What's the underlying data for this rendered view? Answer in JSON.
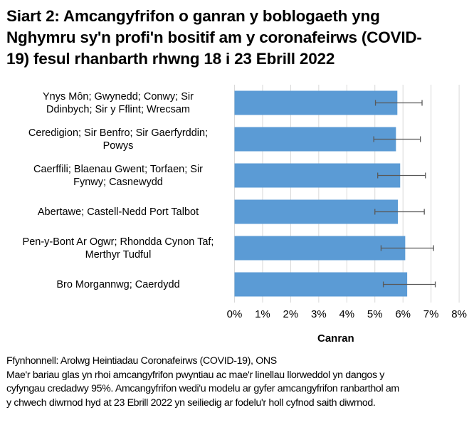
{
  "title": "Siart 2: Amcangyfrifon o ganran y boblogaeth yng Nghymru sy'n profi'n bositif am y coronafeirws (COVID-19) fesul rhanbarth rhwng 18 i 23 Ebrill 2022",
  "title_lines": [
    "Siart 2: Amcangyfrifon o ganran y boblogaeth yng",
    "Nghymru sy'n profi'n bositif am y coronafeirws (COVID-",
    "19) fesul rhanbarth rhwng 18 i 23 Ebrill 2022"
  ],
  "colors": {
    "bar": "#5b9bd5",
    "error_bar": "#595959",
    "grid": "#d9d9d9"
  },
  "chart_data": {
    "type": "bar",
    "orientation": "horizontal",
    "title": "Siart 2: Amcangyfrifon o ganran y boblogaeth yng Nghymru sy'n profi'n bositif am y coronafeirws (COVID-19) fesul rhanbarth rhwng 18 i 23 Ebrill 2022",
    "xlabel": "Canran",
    "ylabel": "",
    "xlim": [
      0,
      8
    ],
    "x_ticks": [
      "0%",
      "1%",
      "2%",
      "3%",
      "4%",
      "5%",
      "6%",
      "7%",
      "8%"
    ],
    "grid": "vertical",
    "legend": null,
    "categories": [
      "Ynys Môn; Gwynedd; Conwy; Sir Ddinbych; Sir y Fflint; Wrecsam",
      "Ceredigion; Sir Benfro; Sir Gaerfyrddin; Powys",
      "Caerffili; Blaenau Gwent; Torfaen; Sir Fynwy; Casnewydd",
      "Abertawe; Castell-Nedd Port Talbot",
      "Pen-y-Bont Ar Ogwr; Rhondda Cynon Taf; Merthyr Tudful",
      "Bro Morgannwg; Caerdydd"
    ],
    "category_lines": [
      [
        "Ynys Môn; Gwynedd; Conwy; Sir",
        "Ddinbych; Sir y Fflint; Wrecsam"
      ],
      [
        "Ceredigion; Sir Benfro; Sir Gaerfyrddin;",
        "Powys"
      ],
      [
        "Caerffili; Blaenau Gwent; Torfaen; Sir",
        "Fynwy; Casnewydd"
      ],
      [
        "Abertawe; Castell-Nedd Port Talbot"
      ],
      [
        "Pen-y-Bont Ar Ogwr; Rhondda Cynon Taf;",
        "Merthyr Tudful"
      ],
      [
        "Bro Morgannwg; Caerdydd"
      ]
    ],
    "series": [
      {
        "name": "Canran",
        "values": [
          5.8,
          5.75,
          5.9,
          5.82,
          6.08,
          6.15
        ],
        "lower_ci": [
          5.02,
          4.96,
          5.1,
          5.0,
          5.22,
          5.3
        ],
        "upper_ci": [
          6.68,
          6.62,
          6.8,
          6.76,
          7.09,
          7.15
        ]
      }
    ]
  },
  "footnote": {
    "source": "Ffynhonnell: Arolwg Heintiadau Coronafeirws (COVID-19), ONS",
    "lines": [
      "Mae'r bariau glas yn rhoi amcangyfrifon pwyntiau ac mae'r linellau llorweddol yn dangos y",
      "cyfyngau credadwy 95%. Amcangyfrifon wedi'u modelu ar gyfer amcangyfrifon ranbarthol am",
      "y chwech diwrnod hyd at 23 Ebrill 2022 yn seiliedig ar fodelu'r holl cyfnod saith diwrnod."
    ]
  }
}
